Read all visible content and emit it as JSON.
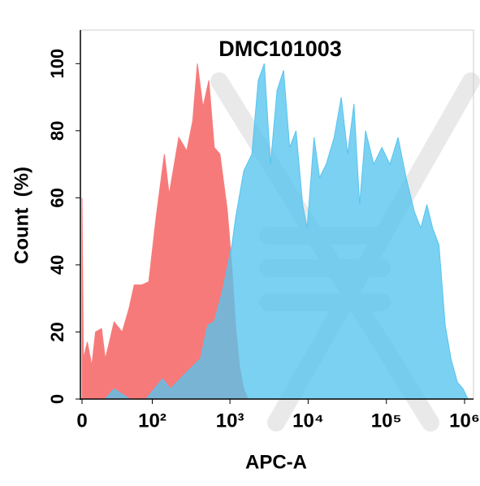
{
  "chart_data": {
    "type": "area",
    "title": "DMC101003",
    "xlabel": "APC-A",
    "ylabel": "Count  (%)",
    "xscale": "biexponential",
    "xlim": [
      0,
      1300000
    ],
    "ylim": [
      0,
      110
    ],
    "xticks": [
      0,
      {
        "value": 100,
        "label": "10²"
      },
      {
        "value": 1000,
        "label": "10³"
      },
      {
        "value": 10000,
        "label": "10⁴"
      },
      {
        "value": 100000,
        "label": "10⁵"
      },
      {
        "value": 1000000,
        "label": "10⁶"
      }
    ],
    "yticks": [
      0,
      20,
      40,
      60,
      80,
      100
    ],
    "series": [
      {
        "color": "#f77a7a",
        "x": [
          0,
          0,
          1,
          4,
          7.5,
          10.5,
          15.6,
          19,
          23,
          28,
          38,
          48,
          57,
          72,
          90,
          112,
          144,
          166,
          221,
          280,
          334,
          383,
          452,
          537,
          630,
          745,
          928,
          1060,
          1180,
          1320,
          1500,
          1700
        ],
        "values": [
          0,
          60,
          12,
          17,
          10,
          20,
          21,
          12,
          17,
          23,
          20,
          27,
          34,
          34,
          35,
          54,
          73,
          61,
          78,
          74,
          83,
          100,
          87,
          95,
          75,
          73,
          56,
          39,
          22,
          10,
          3,
          0
        ]
      },
      {
        "color": "#56c4ee",
        "x": [
          19,
          28,
          49,
          83,
          136,
          173,
          280,
          420,
          520,
          630,
          800,
          1060,
          1180,
          1500,
          1907,
          2300,
          2750,
          3300,
          4000,
          4850,
          5800,
          7000,
          8500,
          9700,
          11900,
          14000,
          17000,
          21500,
          26500,
          32000,
          38500,
          45500,
          54200,
          69000,
          87500,
          111000,
          141000,
          179000,
          227000,
          275000,
          330000,
          390000,
          470000,
          565000,
          670000,
          810000,
          960000,
          1100000
        ],
        "values": [
          0,
          3,
          0,
          0,
          6,
          3,
          8,
          12,
          22,
          23,
          32,
          46,
          54,
          68,
          73,
          95,
          100,
          70,
          92,
          98,
          75,
          80,
          58,
          51,
          78,
          66,
          70,
          78,
          90,
          73,
          88,
          58,
          80,
          70,
          75,
          70,
          78,
          66,
          56,
          51,
          58,
          51,
          46,
          22,
          12,
          5,
          3,
          0
        ]
      }
    ]
  }
}
